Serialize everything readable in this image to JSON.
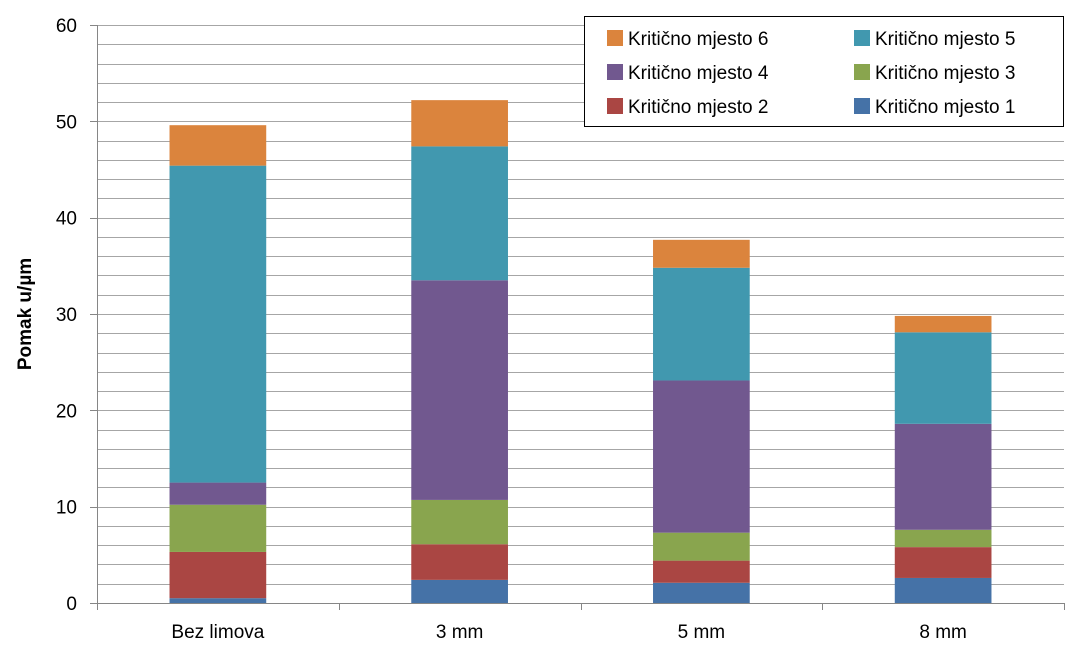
{
  "chart_data": {
    "type": "bar",
    "stacked": true,
    "categories": [
      "Bez limova",
      "3 mm",
      "5 mm",
      "8 mm"
    ],
    "series": [
      {
        "name": "Kritično mjesto 1",
        "color": "#4572A7",
        "values": [
          0.5,
          2.4,
          2.1,
          2.6
        ]
      },
      {
        "name": "Kritično mjesto 2",
        "color": "#AA4643",
        "values": [
          4.8,
          3.7,
          2.3,
          3.2
        ]
      },
      {
        "name": "Kritično mjesto 3",
        "color": "#89A54E",
        "values": [
          4.9,
          4.6,
          2.9,
          1.8
        ]
      },
      {
        "name": "Kritično mjesto 4",
        "color": "#71588F",
        "values": [
          2.3,
          22.8,
          15.8,
          11.0
        ]
      },
      {
        "name": "Kritično mjesto 5",
        "color": "#4198AF",
        "values": [
          32.9,
          13.9,
          11.7,
          9.5
        ]
      },
      {
        "name": "Kritično mjesto 6",
        "color": "#DB843D",
        "values": [
          4.2,
          4.8,
          2.9,
          1.7
        ]
      }
    ],
    "title": "",
    "xlabel": "",
    "ylabel": "Pomak u/µm",
    "ylim": [
      0,
      60
    ],
    "yticks": [
      0,
      10,
      20,
      30,
      40,
      50,
      60
    ],
    "minor_grid_step": 2,
    "grid": true,
    "legend_position": "top-right",
    "legend_order": [
      "Kritično mjesto 6",
      "Kritično mjesto 5",
      "Kritično mjesto 4",
      "Kritično mjesto 3",
      "Kritično mjesto 2",
      "Kritično mjesto 1"
    ]
  }
}
